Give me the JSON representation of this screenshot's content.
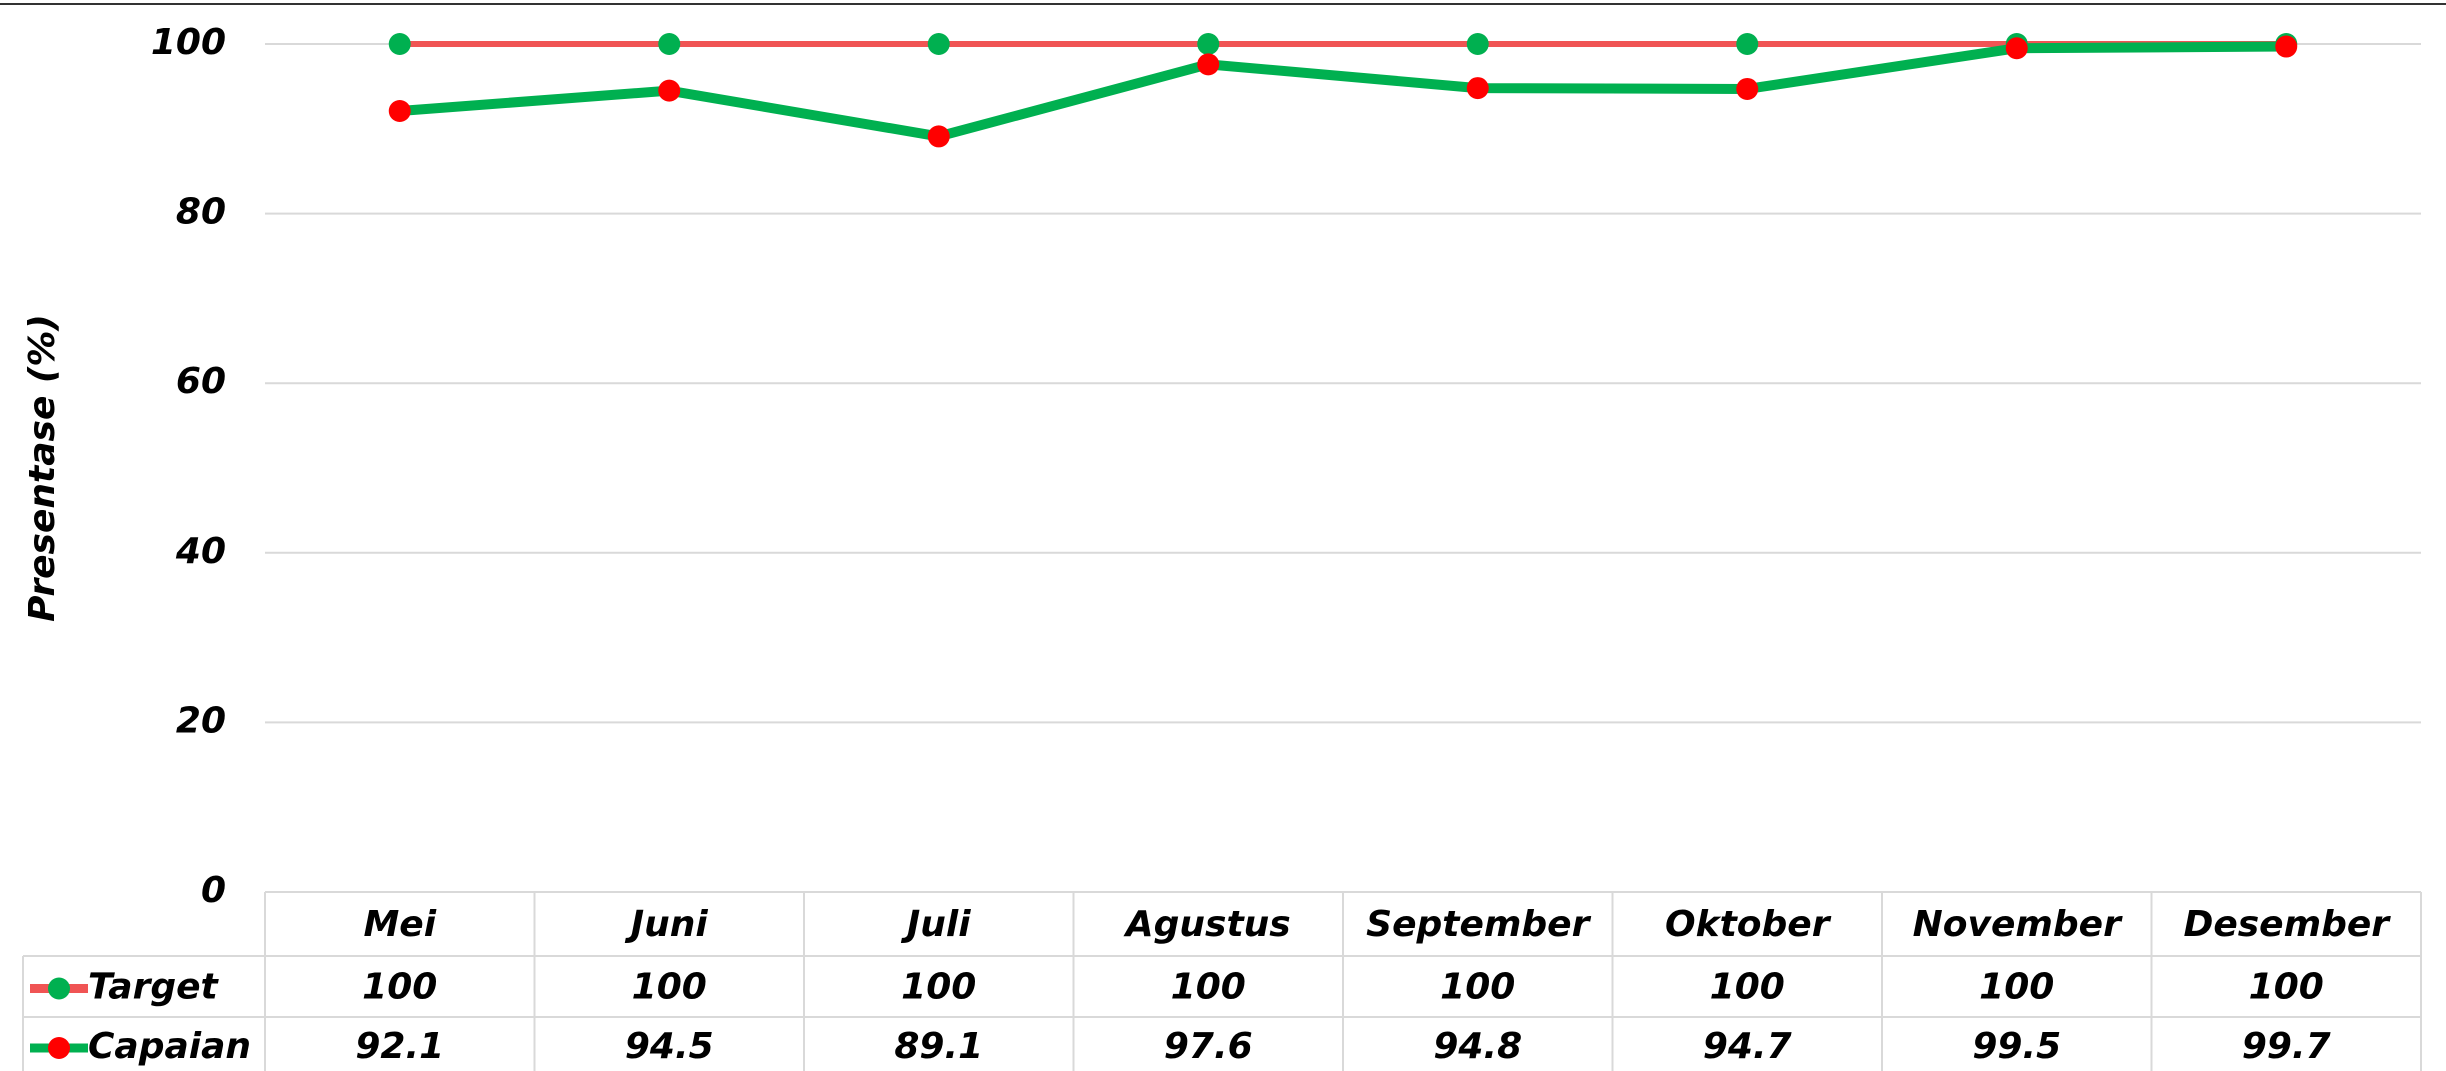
{
  "chart_data": {
    "type": "line",
    "y_label": "Presentase (%)",
    "categories": [
      "Mei",
      "Juni",
      "Juli",
      "Agustus",
      "September",
      "Oktober",
      "November",
      "Desember"
    ],
    "series": [
      {
        "name": "Target",
        "color": "#f05454",
        "marker_color": "#00b050",
        "values": [
          100,
          100,
          100,
          100,
          100,
          100,
          100,
          100
        ]
      },
      {
        "name": "Capaian",
        "color": "#00b050",
        "marker_color": "#ff0000",
        "values": [
          92.1,
          94.5,
          89.1,
          97.6,
          94.8,
          94.7,
          99.5,
          99.7
        ]
      }
    ],
    "ylim": [
      0,
      100
    ],
    "yticks": [
      0,
      20,
      40,
      60,
      80,
      100
    ],
    "grid": true,
    "data_table": true
  }
}
